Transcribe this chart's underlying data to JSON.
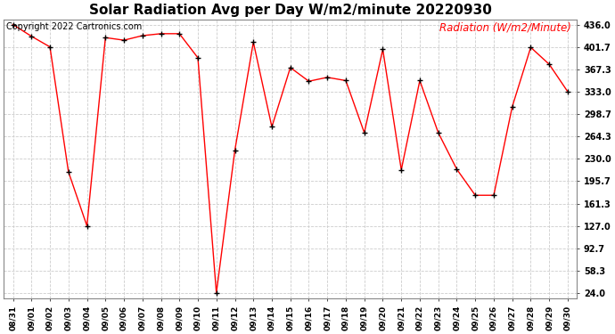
{
  "title": "Solar Radiation Avg per Day W/m2/minute 20220930",
  "copyright_text": "Copyright 2022 Cartronics.com",
  "legend_label": "Radiation (W/m2/Minute)",
  "dates": [
    "08/31",
    "09/01",
    "09/02",
    "09/03",
    "09/04",
    "09/05",
    "09/06",
    "09/07",
    "09/08",
    "09/09",
    "09/10",
    "09/11",
    "09/12",
    "09/13",
    "09/14",
    "09/15",
    "09/16",
    "09/17",
    "09/18",
    "09/19",
    "09/20",
    "09/21",
    "09/22",
    "09/23",
    "09/24",
    "09/25",
    "09/26",
    "09/27",
    "09/28",
    "09/29",
    "09/30"
  ],
  "values": [
    436.0,
    418.0,
    401.7,
    210.0,
    127.0,
    416.0,
    412.0,
    419.0,
    422.0,
    422.0,
    385.0,
    24.0,
    243.0,
    409.0,
    279.0,
    370.0,
    349.0,
    355.0,
    350.0,
    270.0,
    398.0,
    213.0,
    350.0,
    270.0,
    214.0,
    174.0,
    174.0,
    310.0,
    401.0,
    375.0,
    333.0
  ],
  "line_color": "red",
  "marker_color": "black",
  "background_color": "#ffffff",
  "grid_color": "#cccccc",
  "yticks": [
    24.0,
    58.3,
    92.7,
    127.0,
    161.3,
    195.7,
    230.0,
    264.3,
    298.7,
    333.0,
    367.3,
    401.7,
    436.0
  ],
  "ymin": 24.0,
  "ymax": 436.0,
  "title_fontsize": 11,
  "legend_fontsize": 8.5,
  "copyright_fontsize": 7
}
